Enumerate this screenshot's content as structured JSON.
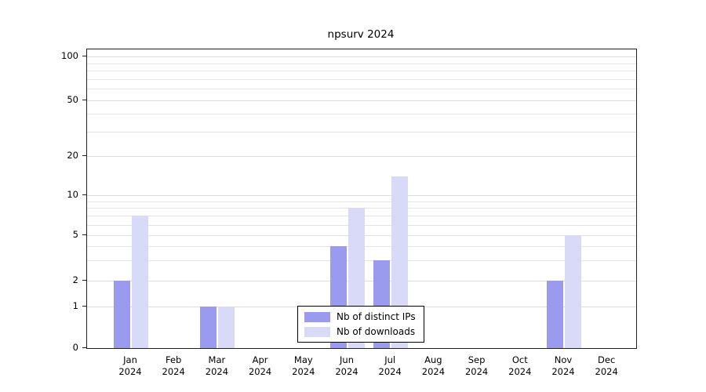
{
  "chart_data": {
    "type": "bar",
    "title": "npsurv 2024",
    "year": "2024",
    "months": [
      "Jan",
      "Feb",
      "Mar",
      "Apr",
      "May",
      "Jun",
      "Jul",
      "Aug",
      "Sep",
      "Oct",
      "Nov",
      "Dec"
    ],
    "series": [
      {
        "name": "Nb of distinct IPs",
        "color": "#9a9aee",
        "values": [
          2,
          0,
          1,
          0,
          0,
          4,
          3,
          0,
          0,
          0,
          2,
          0
        ]
      },
      {
        "name": "Nb of downloads",
        "color": "#d9d9f8",
        "values": [
          7,
          0,
          1,
          0,
          0,
          8,
          14,
          0,
          0,
          0,
          5,
          0
        ]
      }
    ],
    "y_axis": {
      "tick_labels": [
        0,
        1,
        2,
        5,
        10,
        20,
        50,
        100
      ],
      "scale": "log-like",
      "range": [
        0,
        100
      ]
    },
    "grid": true,
    "legend_position": "bottom-center"
  }
}
